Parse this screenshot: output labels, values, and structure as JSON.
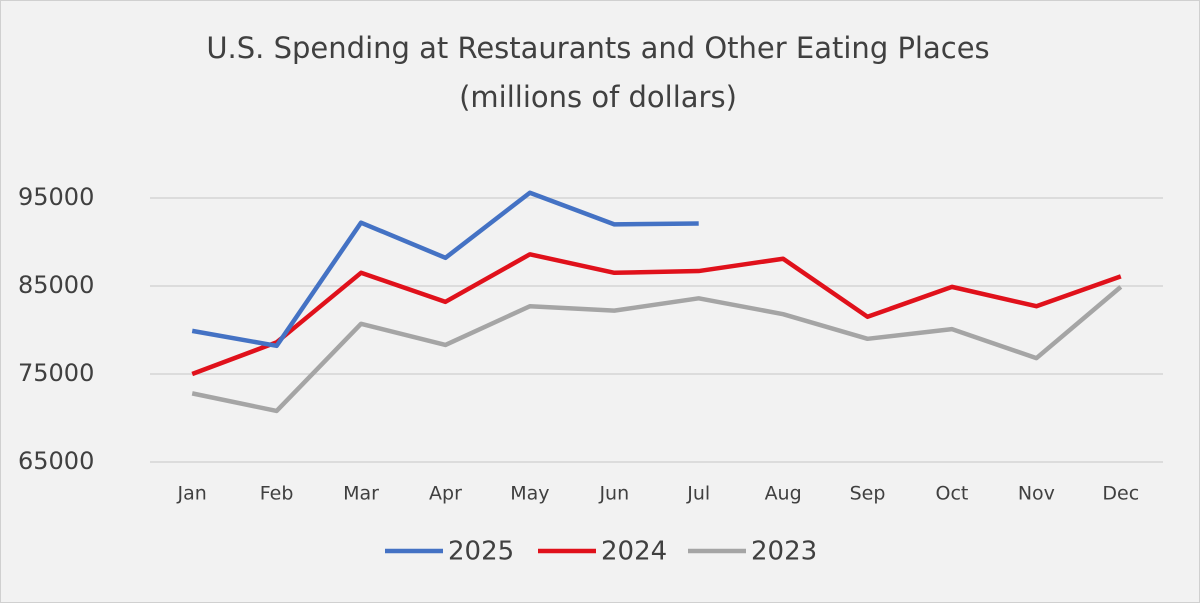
{
  "chart_data": {
    "type": "line",
    "title": "U.S. Spending at Restaurants and Other Eating Places",
    "subtitle": "(millions of dollars)",
    "categories": [
      "Jan",
      "Feb",
      "Mar",
      "Apr",
      "May",
      "Jun",
      "Jul",
      "Aug",
      "Sep",
      "Oct",
      "Nov",
      "Dec"
    ],
    "series": [
      {
        "name": "2025",
        "color": "#4472c4",
        "values": [
          79900,
          78200,
          92200,
          88200,
          95600,
          92000,
          92100,
          null,
          null,
          null,
          null,
          null
        ]
      },
      {
        "name": "2024",
        "color": "#e0111b",
        "values": [
          75000,
          78600,
          86500,
          83200,
          88600,
          86500,
          86700,
          88100,
          81500,
          84900,
          82700,
          86100
        ]
      },
      {
        "name": "2023",
        "color": "#a5a5a5",
        "values": [
          72800,
          70800,
          80700,
          78300,
          82700,
          82200,
          83600,
          81800,
          79000,
          80100,
          76800,
          84900
        ]
      }
    ],
    "ylim": [
      65000,
      95000
    ],
    "yticks": [
      65000,
      75000,
      85000,
      95000
    ],
    "grid": true,
    "legend": "bottom"
  }
}
